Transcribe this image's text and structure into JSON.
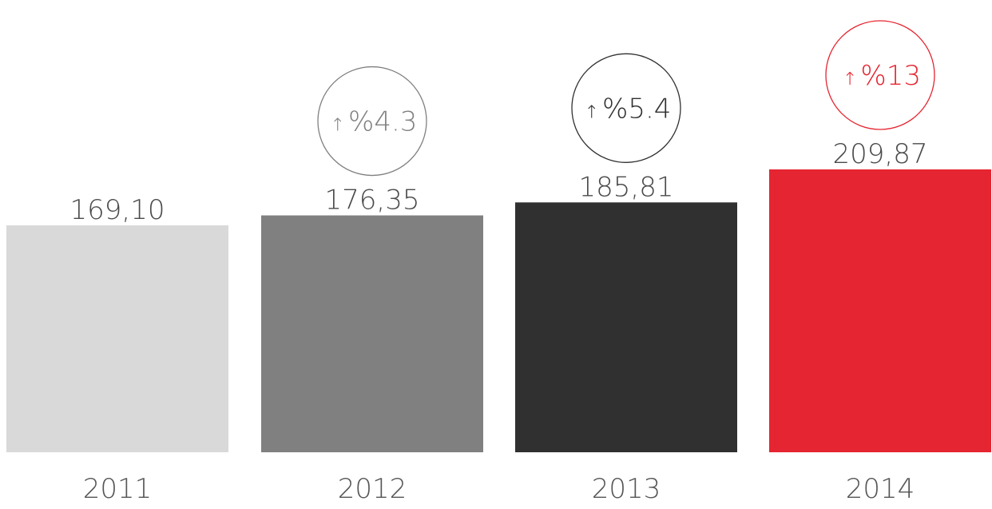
{
  "chart_data": {
    "type": "bar",
    "categories": [
      "2011",
      "2012",
      "2013",
      "2014"
    ],
    "values": [
      169.1,
      176.35,
      185.81,
      209.87
    ],
    "value_labels": [
      "169,10",
      "176,35",
      "185,81",
      "209,87"
    ],
    "bar_colors": [
      "#d9d9d9",
      "#808080",
      "#303030",
      "#e52531"
    ],
    "growth": [
      null,
      {
        "arrow": "↑",
        "text": "%4.3",
        "value": 4.3,
        "color": "#808080"
      },
      {
        "arrow": "↑",
        "text": "%5.4",
        "value": 5.4,
        "color": "#303030"
      },
      {
        "arrow": "↑",
        "text": "%13",
        "value": 13,
        "color": "#e52531"
      }
    ],
    "title": "",
    "xlabel": "",
    "ylabel": "",
    "grid": false,
    "legend": "none"
  }
}
